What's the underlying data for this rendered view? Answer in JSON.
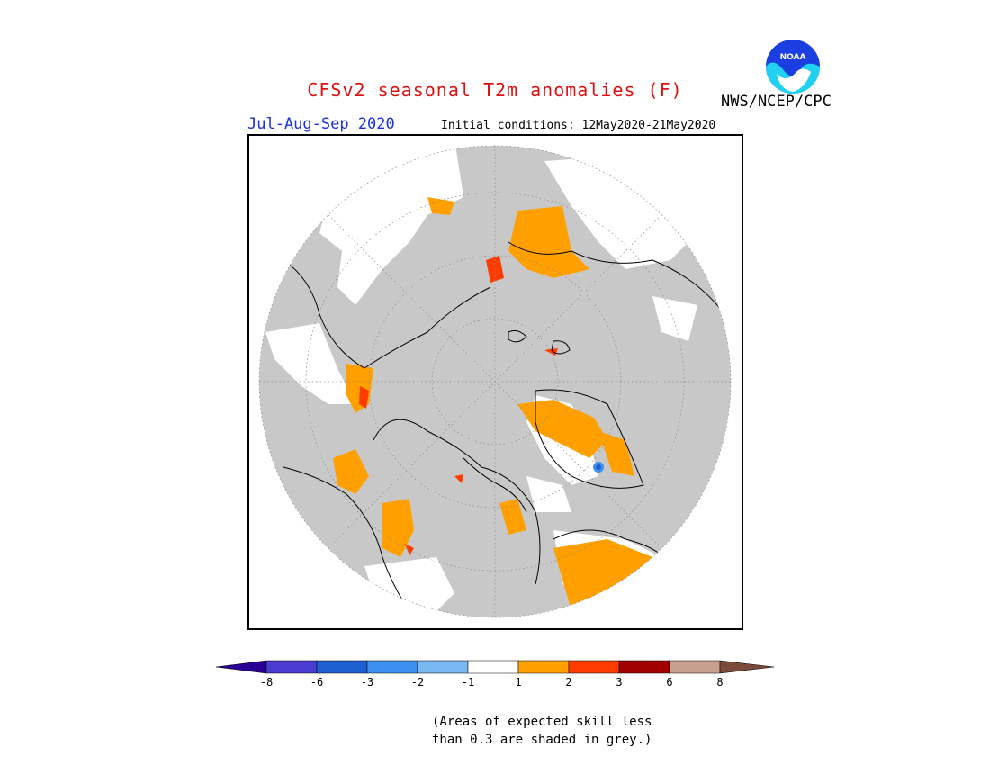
{
  "title": "CFSv2 seasonal T2m anomalies (F)",
  "season": "Jul-Aug-Sep 2020",
  "initial_conditions": "Initial conditions: 12May2020-21May2020",
  "organization": "NWS/NCEP/CPC",
  "logo_text": "NOAA",
  "colors": {
    "title": "#e01010",
    "season": "#1a30e0",
    "no_skill_grey": "#c8c8c8",
    "land_outline": "#000000"
  },
  "map": {
    "projection": "north-polar-stereographic",
    "legend_items": [
      {
        "color": "#2a0094"
      },
      {
        "color": "#4a3cd0"
      },
      {
        "color": "#1e60d0"
      },
      {
        "color": "#3e90ee"
      },
      {
        "color": "#7ab8f4"
      },
      {
        "color": "#ffffff"
      },
      {
        "color": "#ffa000"
      },
      {
        "color": "#ff3c00"
      },
      {
        "color": "#a00000"
      },
      {
        "color": "#c8a090"
      },
      {
        "color": "#7a4a3a"
      }
    ],
    "tick_labels": [
      "-8",
      "-6",
      "-3",
      "-2",
      "-1",
      "1",
      "2",
      "3",
      "6",
      "8"
    ]
  },
  "note": {
    "line1": "(Areas of expected skill less",
    "line2": "than 0.3 are shaded in grey.)"
  }
}
